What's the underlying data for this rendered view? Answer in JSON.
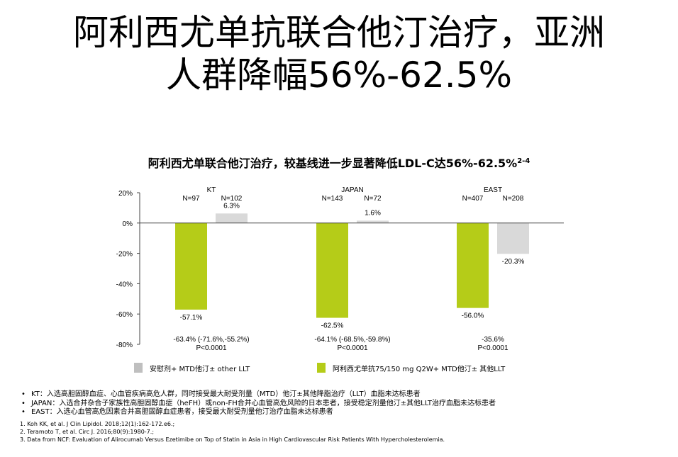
{
  "slide": {
    "title_line1": "阿利西尤单抗联合他汀治疗，亚洲",
    "title_line2_cjk": "人群降幅",
    "title_line2_num": "56%-62.5%",
    "subtitle": "阿利西尤单联合他汀治疗，较基线进一步显著降低LDL-C达56%-62.5%",
    "subtitle_sup": "2-4"
  },
  "chart_data": {
    "type": "bar",
    "categories": [
      "KT",
      "JAPAN",
      "EAST"
    ],
    "y_tick_labels": [
      "20%",
      "0%",
      "-20%",
      "-40%",
      "-60%",
      "-80%"
    ],
    "ylim": [
      -80,
      20
    ],
    "grid": false,
    "groups": [
      {
        "name": "KT",
        "n_labels": [
          "N=97",
          "N=102"
        ],
        "value_labels": [
          "-57.1%",
          "6.3%"
        ],
        "diff_text": "-63.4% (-71.6%,-55.2%)",
        "p_text": "P<0.0001"
      },
      {
        "name": "JAPAN",
        "n_labels": [
          "N=143",
          "N=72"
        ],
        "value_labels": [
          "-62.5%",
          "1.6%"
        ],
        "diff_text": "-64.1% (-68.5%,-59.8%)",
        "p_text": "P<0.0001"
      },
      {
        "name": "EAST",
        "n_labels": [
          "N=407",
          "N=208"
        ],
        "value_labels": [
          "-56.0%",
          "-20.3%"
        ],
        "diff_text": "-35.6%",
        "p_text": "P<0.0001"
      }
    ],
    "series": [
      {
        "name": "阿利西尤单抗75/150 mg Q2W+ MTD他汀± 其他LLT",
        "color": "#b5cc18",
        "values": [
          -57.1,
          -62.5,
          -56.0
        ]
      },
      {
        "name": "安慰剂+ MTD他汀± other LLT",
        "color": "#d9d9d9",
        "values": [
          6.3,
          1.6,
          -20.3
        ]
      }
    ],
    "legend": [
      {
        "label": "安慰剂+ MTD他汀± other LLT",
        "color": "#bfbfbf"
      },
      {
        "label": "阿利西尤单抗75/150 mg Q2W+ MTD他汀± 其他LLT",
        "color": "#b5cc18"
      }
    ]
  },
  "footnotes": {
    "bullets": [
      "KT：入选高胆固醇血症、心血管疾病高危人群，同时接受最大耐受剂量（MTD）他汀±其他降脂治疗（LLT）血脂未达标患者",
      "JAPAN：入选合并杂合子家族性高胆固醇血症（heFH）或non-FH合并心血管高危风险的日本患者，接受稳定剂量他汀±其他LLT治疗血脂未达标患者",
      "EAST：入选心血管高危因素合并高胆固醇血症患者，接受最大耐受剂量他汀治疗血脂未达标患者"
    ],
    "references": [
      "1. Koh KK, et al. J Clin Lipidol. 2018;12(1):162-172.e6.;",
      "2. Teramoto T, et al. Circ J. 2016;80(9):1980-7.;",
      "3. Data from NCF: Evaluation of Alirocumab Versus Ezetimibe on Top of Statin in Asia in High Cardiovascular Risk Patients With Hypercholesterolemia."
    ]
  }
}
